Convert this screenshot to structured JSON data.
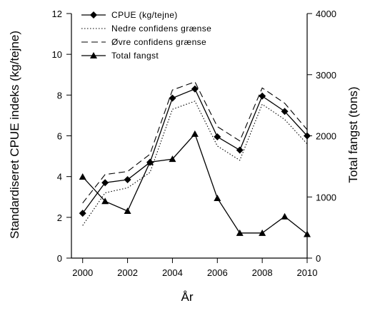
{
  "chart_data": {
    "type": "line",
    "title": "",
    "xlabel": "År",
    "ylabel": "Standardiseret CPUE indeks (kg/tejne)",
    "y2label": "Total fangst (tons)",
    "xlim": [
      1999.5,
      2010
    ],
    "ylim": [
      0,
      12
    ],
    "y2lim": [
      0,
      4000
    ],
    "xticks": [
      2000,
      2002,
      2004,
      2006,
      2008,
      2010
    ],
    "yticks": [
      0,
      2,
      4,
      6,
      8,
      10,
      12
    ],
    "y2ticks": [
      0,
      1000,
      2000,
      3000,
      4000
    ],
    "legend_position": "top-left",
    "grid": false,
    "x": [
      2000,
      2001,
      2002,
      2003,
      2004,
      2005,
      2006,
      2007,
      2008,
      2009,
      2010
    ],
    "series": [
      {
        "name": "CPUE (kg/tejne)",
        "axis": "left",
        "marker": "diamond",
        "dash": "solid",
        "values": [
          2.2,
          3.7,
          3.85,
          4.7,
          7.85,
          8.3,
          5.95,
          5.3,
          7.95,
          7.2,
          6.0
        ]
      },
      {
        "name": "Nedre confidens grænse",
        "axis": "left",
        "marker": "none",
        "dash": "dotted",
        "values": [
          1.6,
          3.2,
          3.45,
          4.2,
          7.3,
          7.7,
          5.5,
          4.8,
          7.55,
          6.8,
          5.6
        ]
      },
      {
        "name": "Øvre confidens grænse",
        "axis": "left",
        "marker": "none",
        "dash": "dashed",
        "values": [
          2.7,
          4.1,
          4.25,
          5.1,
          8.25,
          8.65,
          6.45,
          5.75,
          8.35,
          7.6,
          6.3
        ]
      },
      {
        "name": "Total fangst",
        "axis": "right",
        "marker": "triangle",
        "dash": "solid",
        "values": [
          1330,
          930,
          770,
          1570,
          1620,
          2030,
          980,
          410,
          410,
          680,
          390
        ]
      }
    ]
  }
}
